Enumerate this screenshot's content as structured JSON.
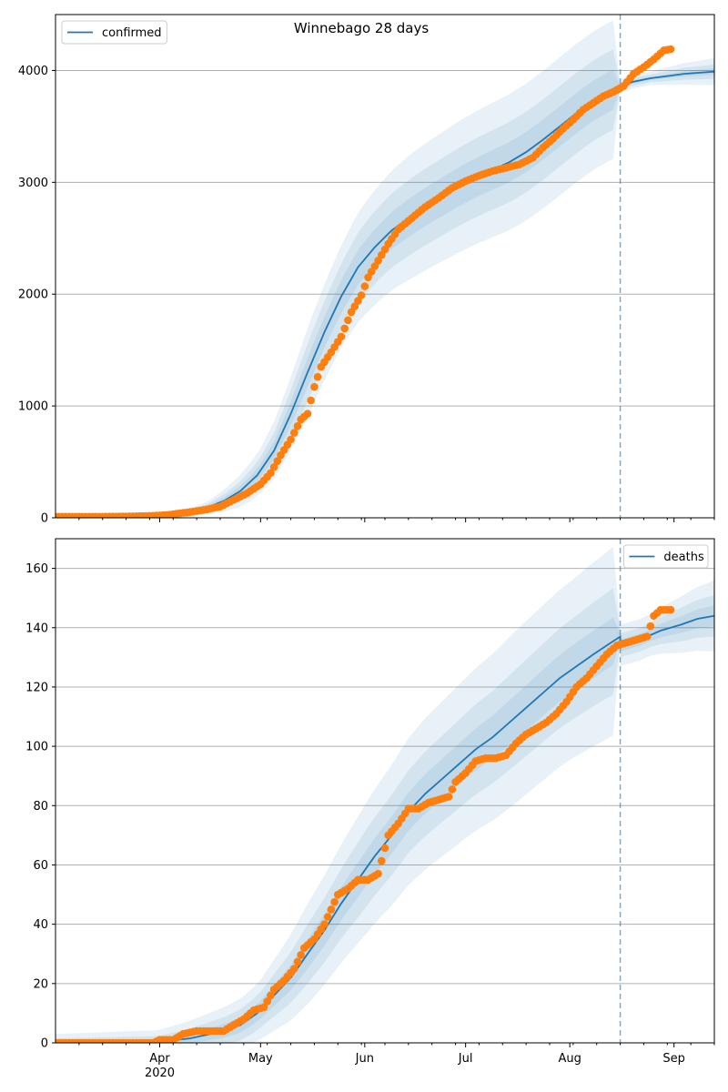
{
  "figure": {
    "title": "Winnebago 28 days"
  },
  "chart_data": [
    {
      "type": "line",
      "legend": {
        "entries": [
          "confirmed"
        ],
        "placement": "top-left"
      },
      "x_domain": [
        "2020-03-01",
        "2020-09-13"
      ],
      "ylim": [
        0,
        4500
      ],
      "yticks": [
        0,
        1000,
        2000,
        3000,
        4000
      ],
      "grid": "horizontal",
      "vline_date": "2020-08-16",
      "model_line": [
        [
          "2020-03-01",
          0
        ],
        [
          "2020-03-20",
          2
        ],
        [
          "2020-03-31",
          10
        ],
        [
          "2020-04-05",
          22
        ],
        [
          "2020-04-10",
          50
        ],
        [
          "2020-04-15",
          90
        ],
        [
          "2020-04-20",
          150
        ],
        [
          "2020-04-25",
          240
        ],
        [
          "2020-04-30",
          380
        ],
        [
          "2020-05-05",
          600
        ],
        [
          "2020-05-10",
          930
        ],
        [
          "2020-05-15",
          1300
        ],
        [
          "2020-05-20",
          1660
        ],
        [
          "2020-05-25",
          1980
        ],
        [
          "2020-05-30",
          2240
        ],
        [
          "2020-06-04",
          2420
        ],
        [
          "2020-06-09",
          2570
        ],
        [
          "2020-06-14",
          2680
        ],
        [
          "2020-06-19",
          2780
        ],
        [
          "2020-06-24",
          2870
        ],
        [
          "2020-06-29",
          2960
        ],
        [
          "2020-07-04",
          3040
        ],
        [
          "2020-07-09",
          3110
        ],
        [
          "2020-07-14",
          3180
        ],
        [
          "2020-07-19",
          3270
        ],
        [
          "2020-07-24",
          3380
        ],
        [
          "2020-07-29",
          3500
        ],
        [
          "2020-08-03",
          3620
        ],
        [
          "2020-08-08",
          3730
        ],
        [
          "2020-08-12",
          3800
        ],
        [
          "2020-08-16",
          3860
        ],
        [
          "2020-08-20",
          3900
        ],
        [
          "2020-08-25",
          3930
        ],
        [
          "2020-08-30",
          3950
        ],
        [
          "2020-09-04",
          3970
        ],
        [
          "2020-09-13",
          3990
        ]
      ],
      "band_half_widths": {
        "dates": [
          "2020-03-01",
          "2020-04-01",
          "2020-04-15",
          "2020-05-01",
          "2020-05-15",
          "2020-06-01",
          "2020-06-15",
          "2020-07-01",
          "2020-07-15",
          "2020-08-01",
          "2020-08-15",
          "2020-08-16",
          "2020-08-25",
          "2020-09-05",
          "2020-09-13"
        ],
        "inner": [
          0,
          5,
          15,
          60,
          130,
          160,
          170,
          175,
          180,
          180,
          180,
          0,
          15,
          25,
          30
        ],
        "middle": [
          2,
          10,
          30,
          120,
          260,
          320,
          340,
          350,
          360,
          360,
          360,
          5,
          35,
          55,
          65
        ],
        "outer": [
          5,
          20,
          50,
          200,
          400,
          500,
          560,
          590,
          610,
          620,
          620,
          10,
          60,
          100,
          120
        ]
      },
      "observed": [
        [
          "2020-03-01",
          10
        ],
        [
          "2020-03-05",
          10
        ],
        [
          "2020-03-10",
          10
        ],
        [
          "2020-03-15",
          10
        ],
        [
          "2020-03-20",
          11
        ],
        [
          "2020-03-25",
          14
        ],
        [
          "2020-03-30",
          18
        ],
        [
          "2020-04-03",
          25
        ],
        [
          "2020-04-07",
          40
        ],
        [
          "2020-04-11",
          55
        ],
        [
          "2020-04-15",
          75
        ],
        [
          "2020-04-19",
          100
        ],
        [
          "2020-04-23",
          160
        ],
        [
          "2020-04-27",
          220
        ],
        [
          "2020-05-01",
          300
        ],
        [
          "2020-05-04",
          400
        ],
        [
          "2020-05-07",
          560
        ],
        [
          "2020-05-10",
          700
        ],
        [
          "2020-05-13",
          880
        ],
        [
          "2020-05-15",
          930
        ],
        [
          "2020-05-17",
          1170
        ],
        [
          "2020-05-19",
          1350
        ],
        [
          "2020-05-22",
          1480
        ],
        [
          "2020-05-25",
          1620
        ],
        [
          "2020-05-28",
          1840
        ],
        [
          "2020-05-31",
          1990
        ],
        [
          "2020-06-02",
          2150
        ],
        [
          "2020-06-05",
          2300
        ],
        [
          "2020-06-08",
          2450
        ],
        [
          "2020-06-11",
          2580
        ],
        [
          "2020-06-15",
          2680
        ],
        [
          "2020-06-19",
          2780
        ],
        [
          "2020-06-23",
          2860
        ],
        [
          "2020-06-27",
          2950
        ],
        [
          "2020-07-01",
          3010
        ],
        [
          "2020-07-05",
          3060
        ],
        [
          "2020-07-09",
          3100
        ],
        [
          "2020-07-13",
          3130
        ],
        [
          "2020-07-17",
          3160
        ],
        [
          "2020-07-21",
          3220
        ],
        [
          "2020-07-24",
          3310
        ],
        [
          "2020-07-27",
          3390
        ],
        [
          "2020-07-30",
          3480
        ],
        [
          "2020-08-02",
          3560
        ],
        [
          "2020-08-05",
          3650
        ],
        [
          "2020-08-08",
          3710
        ],
        [
          "2020-08-11",
          3770
        ],
        [
          "2020-08-14",
          3810
        ],
        [
          "2020-08-17",
          3860
        ],
        [
          "2020-08-20",
          3970
        ],
        [
          "2020-08-23",
          4030
        ],
        [
          "2020-08-26",
          4100
        ],
        [
          "2020-08-29",
          4180
        ],
        [
          "2020-08-31",
          4190
        ]
      ]
    },
    {
      "type": "line",
      "legend": {
        "entries": [
          "deaths"
        ],
        "placement": "top-right"
      },
      "x_domain": [
        "2020-03-01",
        "2020-09-13"
      ],
      "ylim": [
        0,
        170
      ],
      "yticks": [
        0,
        20,
        40,
        60,
        80,
        100,
        120,
        140,
        160
      ],
      "grid": "horizontal",
      "vline_date": "2020-08-16",
      "xticks": [
        {
          "date": "2020-04-01",
          "label": "Apr",
          "sublabel": "2020"
        },
        {
          "date": "2020-05-01",
          "label": "May"
        },
        {
          "date": "2020-06-01",
          "label": "Jun"
        },
        {
          "date": "2020-07-01",
          "label": "Jul"
        },
        {
          "date": "2020-08-01",
          "label": "Aug"
        },
        {
          "date": "2020-09-01",
          "label": "Sep"
        }
      ],
      "model_line": [
        [
          "2020-03-01",
          0
        ],
        [
          "2020-03-31",
          0.3
        ],
        [
          "2020-04-10",
          1.5
        ],
        [
          "2020-04-20",
          4
        ],
        [
          "2020-04-25",
          6
        ],
        [
          "2020-04-30",
          10
        ],
        [
          "2020-05-05",
          16
        ],
        [
          "2020-05-10",
          22
        ],
        [
          "2020-05-15",
          30
        ],
        [
          "2020-05-20",
          38
        ],
        [
          "2020-05-25",
          47
        ],
        [
          "2020-05-30",
          55
        ],
        [
          "2020-06-04",
          63
        ],
        [
          "2020-06-09",
          70
        ],
        [
          "2020-06-14",
          78
        ],
        [
          "2020-06-19",
          84
        ],
        [
          "2020-06-24",
          89
        ],
        [
          "2020-06-29",
          94
        ],
        [
          "2020-07-04",
          99
        ],
        [
          "2020-07-09",
          103
        ],
        [
          "2020-07-14",
          108
        ],
        [
          "2020-07-19",
          113
        ],
        [
          "2020-07-24",
          118
        ],
        [
          "2020-07-29",
          123
        ],
        [
          "2020-08-03",
          127
        ],
        [
          "2020-08-08",
          131
        ],
        [
          "2020-08-12",
          134
        ],
        [
          "2020-08-16",
          137
        ],
        [
          "2020-08-16",
          134
        ],
        [
          "2020-08-22",
          136
        ],
        [
          "2020-08-28",
          139
        ],
        [
          "2020-09-03",
          141
        ],
        [
          "2020-09-08",
          143
        ],
        [
          "2020-09-13",
          144
        ]
      ],
      "band_half_widths": {
        "dates": [
          "2020-03-01",
          "2020-04-01",
          "2020-04-15",
          "2020-05-01",
          "2020-05-15",
          "2020-06-01",
          "2020-06-15",
          "2020-07-01",
          "2020-07-15",
          "2020-08-01",
          "2020-08-15",
          "2020-08-16",
          "2020-08-25",
          "2020-09-05",
          "2020-09-13"
        ],
        "inner": [
          0.5,
          1,
          2,
          3,
          5,
          6,
          6.5,
          7,
          7.5,
          8,
          8,
          1,
          2,
          3,
          3.5
        ],
        "middle": [
          1.5,
          2,
          4,
          6,
          10,
          13,
          14,
          15,
          16,
          17,
          18,
          2,
          4,
          6,
          7
        ],
        "outer": [
          3,
          4,
          7,
          10,
          17,
          22,
          25,
          27,
          29,
          30,
          32,
          3,
          7,
          10,
          12
        ]
      },
      "observed": [
        [
          "2020-03-01",
          0
        ],
        [
          "2020-03-05",
          0
        ],
        [
          "2020-03-10",
          0
        ],
        [
          "2020-03-15",
          0
        ],
        [
          "2020-03-20",
          0
        ],
        [
          "2020-03-25",
          0
        ],
        [
          "2020-03-30",
          0
        ],
        [
          "2020-04-01",
          1
        ],
        [
          "2020-04-05",
          1
        ],
        [
          "2020-04-08",
          3
        ],
        [
          "2020-04-12",
          4
        ],
        [
          "2020-04-16",
          4
        ],
        [
          "2020-04-20",
          4
        ],
        [
          "2020-04-23",
          6
        ],
        [
          "2020-04-26",
          8
        ],
        [
          "2020-04-29",
          11
        ],
        [
          "2020-05-02",
          12
        ],
        [
          "2020-05-05",
          18
        ],
        [
          "2020-05-08",
          21
        ],
        [
          "2020-05-11",
          25
        ],
        [
          "2020-05-14",
          32
        ],
        [
          "2020-05-17",
          35
        ],
        [
          "2020-05-20",
          40
        ],
        [
          "2020-05-22",
          45
        ],
        [
          "2020-05-24",
          50
        ],
        [
          "2020-05-27",
          52
        ],
        [
          "2020-05-30",
          55
        ],
        [
          "2020-06-02",
          55
        ],
        [
          "2020-06-05",
          57
        ],
        [
          "2020-06-08",
          70
        ],
        [
          "2020-06-11",
          74
        ],
        [
          "2020-06-14",
          79
        ],
        [
          "2020-06-17",
          79
        ],
        [
          "2020-06-20",
          81
        ],
        [
          "2020-06-23",
          82
        ],
        [
          "2020-06-26",
          83
        ],
        [
          "2020-06-28",
          88
        ],
        [
          "2020-07-01",
          91
        ],
        [
          "2020-07-04",
          95
        ],
        [
          "2020-07-07",
          96
        ],
        [
          "2020-07-10",
          96
        ],
        [
          "2020-07-13",
          97
        ],
        [
          "2020-07-16",
          101
        ],
        [
          "2020-07-19",
          104
        ],
        [
          "2020-07-22",
          106
        ],
        [
          "2020-07-25",
          108
        ],
        [
          "2020-07-28",
          111
        ],
        [
          "2020-07-31",
          115
        ],
        [
          "2020-08-03",
          120
        ],
        [
          "2020-08-06",
          123
        ],
        [
          "2020-08-09",
          127
        ],
        [
          "2020-08-12",
          131
        ],
        [
          "2020-08-15",
          134
        ],
        [
          "2020-08-18",
          135
        ],
        [
          "2020-08-21",
          136
        ],
        [
          "2020-08-24",
          137
        ],
        [
          "2020-08-26",
          144
        ],
        [
          "2020-08-28",
          146
        ],
        [
          "2020-08-31",
          146
        ]
      ]
    }
  ],
  "colors": {
    "model": "#1f77b4",
    "band": "#1f77b4",
    "observed": "#ff7f0e",
    "grid": "#b0b0b0",
    "vline": "#1f77b4",
    "axis": "#000000"
  }
}
